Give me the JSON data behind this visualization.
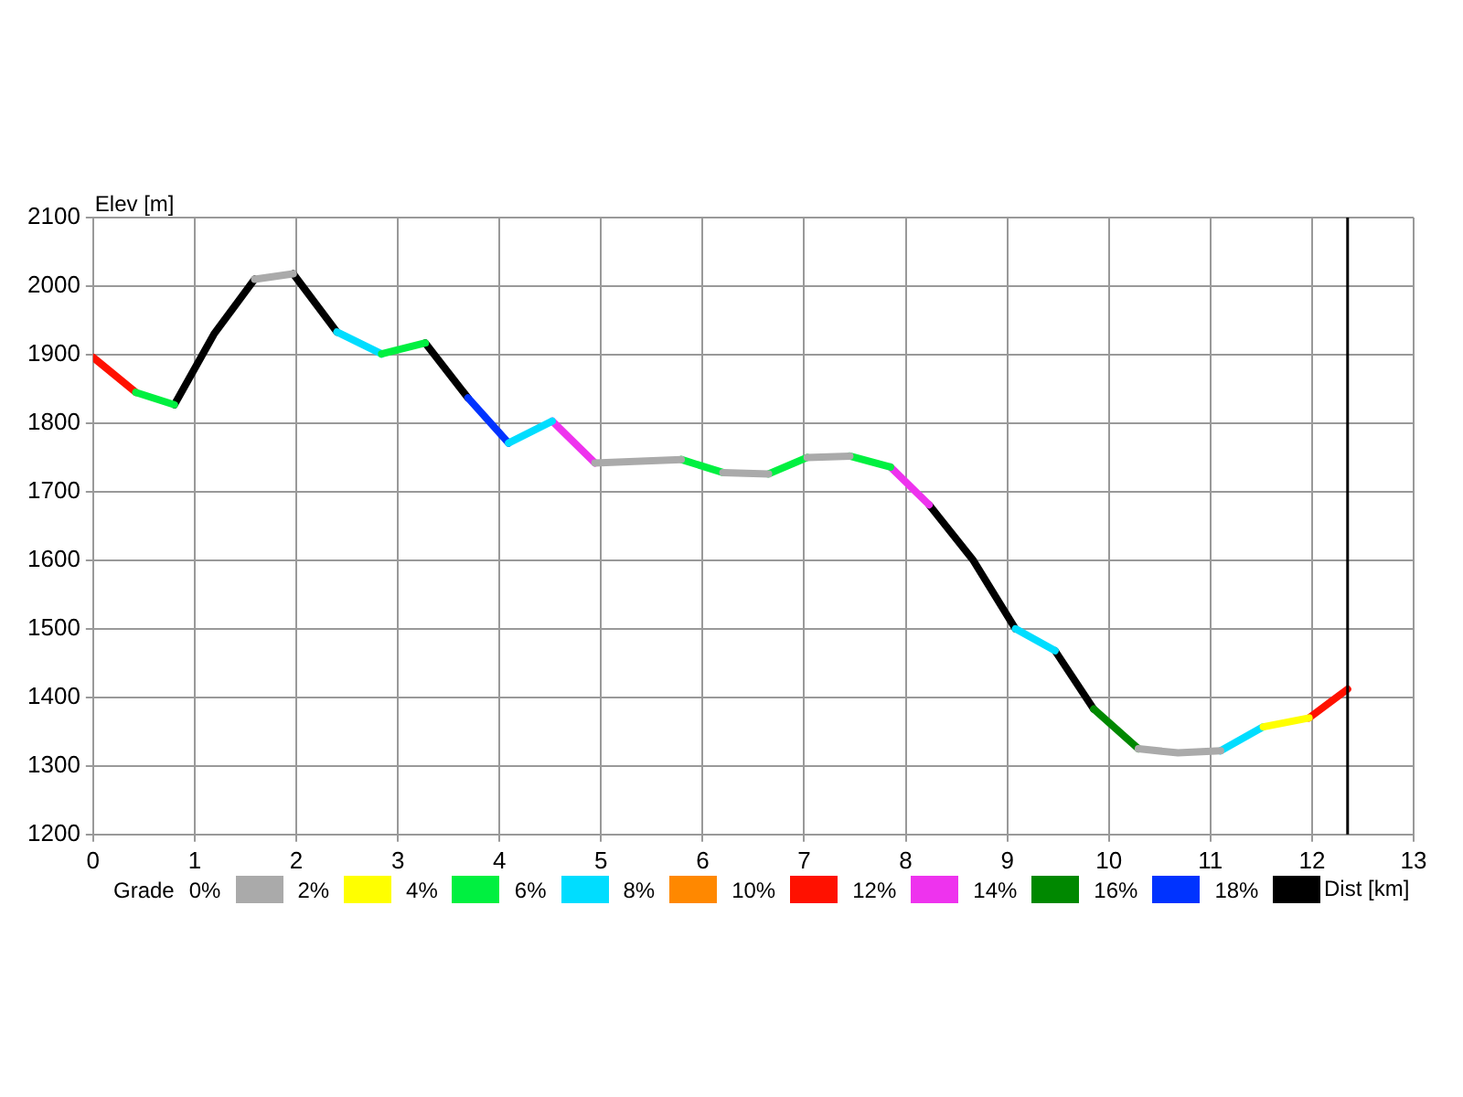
{
  "chart_data": {
    "type": "line",
    "xlabel": "Dist [km]",
    "ylabel": "Elev [m]",
    "legend_title": "Grade",
    "legend": "bottom",
    "grid": true,
    "marker": "none",
    "line_style": "solid",
    "xlim": [
      0,
      13
    ],
    "xticks": [
      0,
      1,
      2,
      3,
      4,
      5,
      6,
      7,
      8,
      9,
      10,
      11,
      12,
      13
    ],
    "ylim": [
      1200,
      2100
    ],
    "yticks": [
      1200,
      1300,
      1400,
      1500,
      1600,
      1700,
      1800,
      1900,
      2000,
      2100
    ],
    "series": [
      {
        "name": "0%",
        "color": "#aaaaaa",
        "x": [
          1.59,
          1.97,
          3,
          4.94,
          5.79,
          6,
          6.2,
          6.65,
          6.8,
          7.03,
          7.45,
          8,
          10.29,
          10.68,
          11.1
        ],
        "values": [
          2010,
          2018,
          null,
          1742,
          1747,
          null,
          1728,
          1726,
          null,
          1750,
          1752,
          null,
          1325,
          1319,
          1322
        ]
      },
      {
        "name": "2%",
        "color": "#ffff00",
        "x": [
          11.52,
          11.97
        ],
        "values": [
          1357,
          1370
        ]
      },
      {
        "name": "4%",
        "color": "#00f040",
        "x": [
          0.42,
          0.8,
          2,
          2.84,
          3.27,
          5,
          5.79,
          6.2,
          6.5,
          6.65,
          7.03,
          7.2,
          7.45,
          7.85
        ],
        "values": [
          1845,
          1827,
          null,
          1901,
          1917,
          null,
          1747,
          1728,
          null,
          1726,
          1750,
          null,
          1752,
          1736
        ]
      },
      {
        "name": "6%",
        "color": "#00ddff",
        "x": [
          2.4,
          2.84,
          3.5,
          4.09,
          4.52,
          7,
          9.08,
          9.47,
          10,
          11.1,
          11.52
        ],
        "values": [
          1933,
          1901,
          null,
          1771,
          1803,
          null,
          1500,
          1468,
          null,
          1322,
          1357
        ]
      },
      {
        "name": "8%",
        "color": "#ff8800"
      },
      {
        "name": "10%",
        "color": "#ff1100",
        "x": [
          0,
          0.42,
          5,
          11.97,
          12.35
        ],
        "values": [
          1896,
          1845,
          null,
          1370,
          1412
        ]
      },
      {
        "name": "12%",
        "color": "#ee33ee",
        "x": [
          4.52,
          4.94,
          6,
          7.85,
          8.23
        ],
        "values": [
          1803,
          1742,
          null,
          1736,
          1681
        ]
      },
      {
        "name": "14%",
        "color": "#008800",
        "x": [
          9.85,
          10.29
        ],
        "values": [
          1383,
          1325
        ]
      },
      {
        "name": "16%",
        "color": "#0033ff",
        "x": [
          3.69,
          4.09
        ],
        "values": [
          1837,
          1771
        ]
      },
      {
        "name": "18%",
        "color": "#000000",
        "x": [
          0.8,
          1.19,
          1.59,
          1.8,
          1.97,
          2.4,
          2.8,
          3.27,
          3.69,
          6,
          8.23,
          8.66,
          9.08,
          9.3,
          9.47,
          9.85
        ],
        "values": [
          1827,
          1930,
          2010,
          null,
          2018,
          1933,
          null,
          1917,
          1837,
          null,
          1681,
          1601,
          1500,
          null,
          1468,
          1383
        ]
      }
    ],
    "ref_lines": [
      {
        "axis": "x",
        "value": 12.35,
        "color": "#000000"
      }
    ]
  }
}
